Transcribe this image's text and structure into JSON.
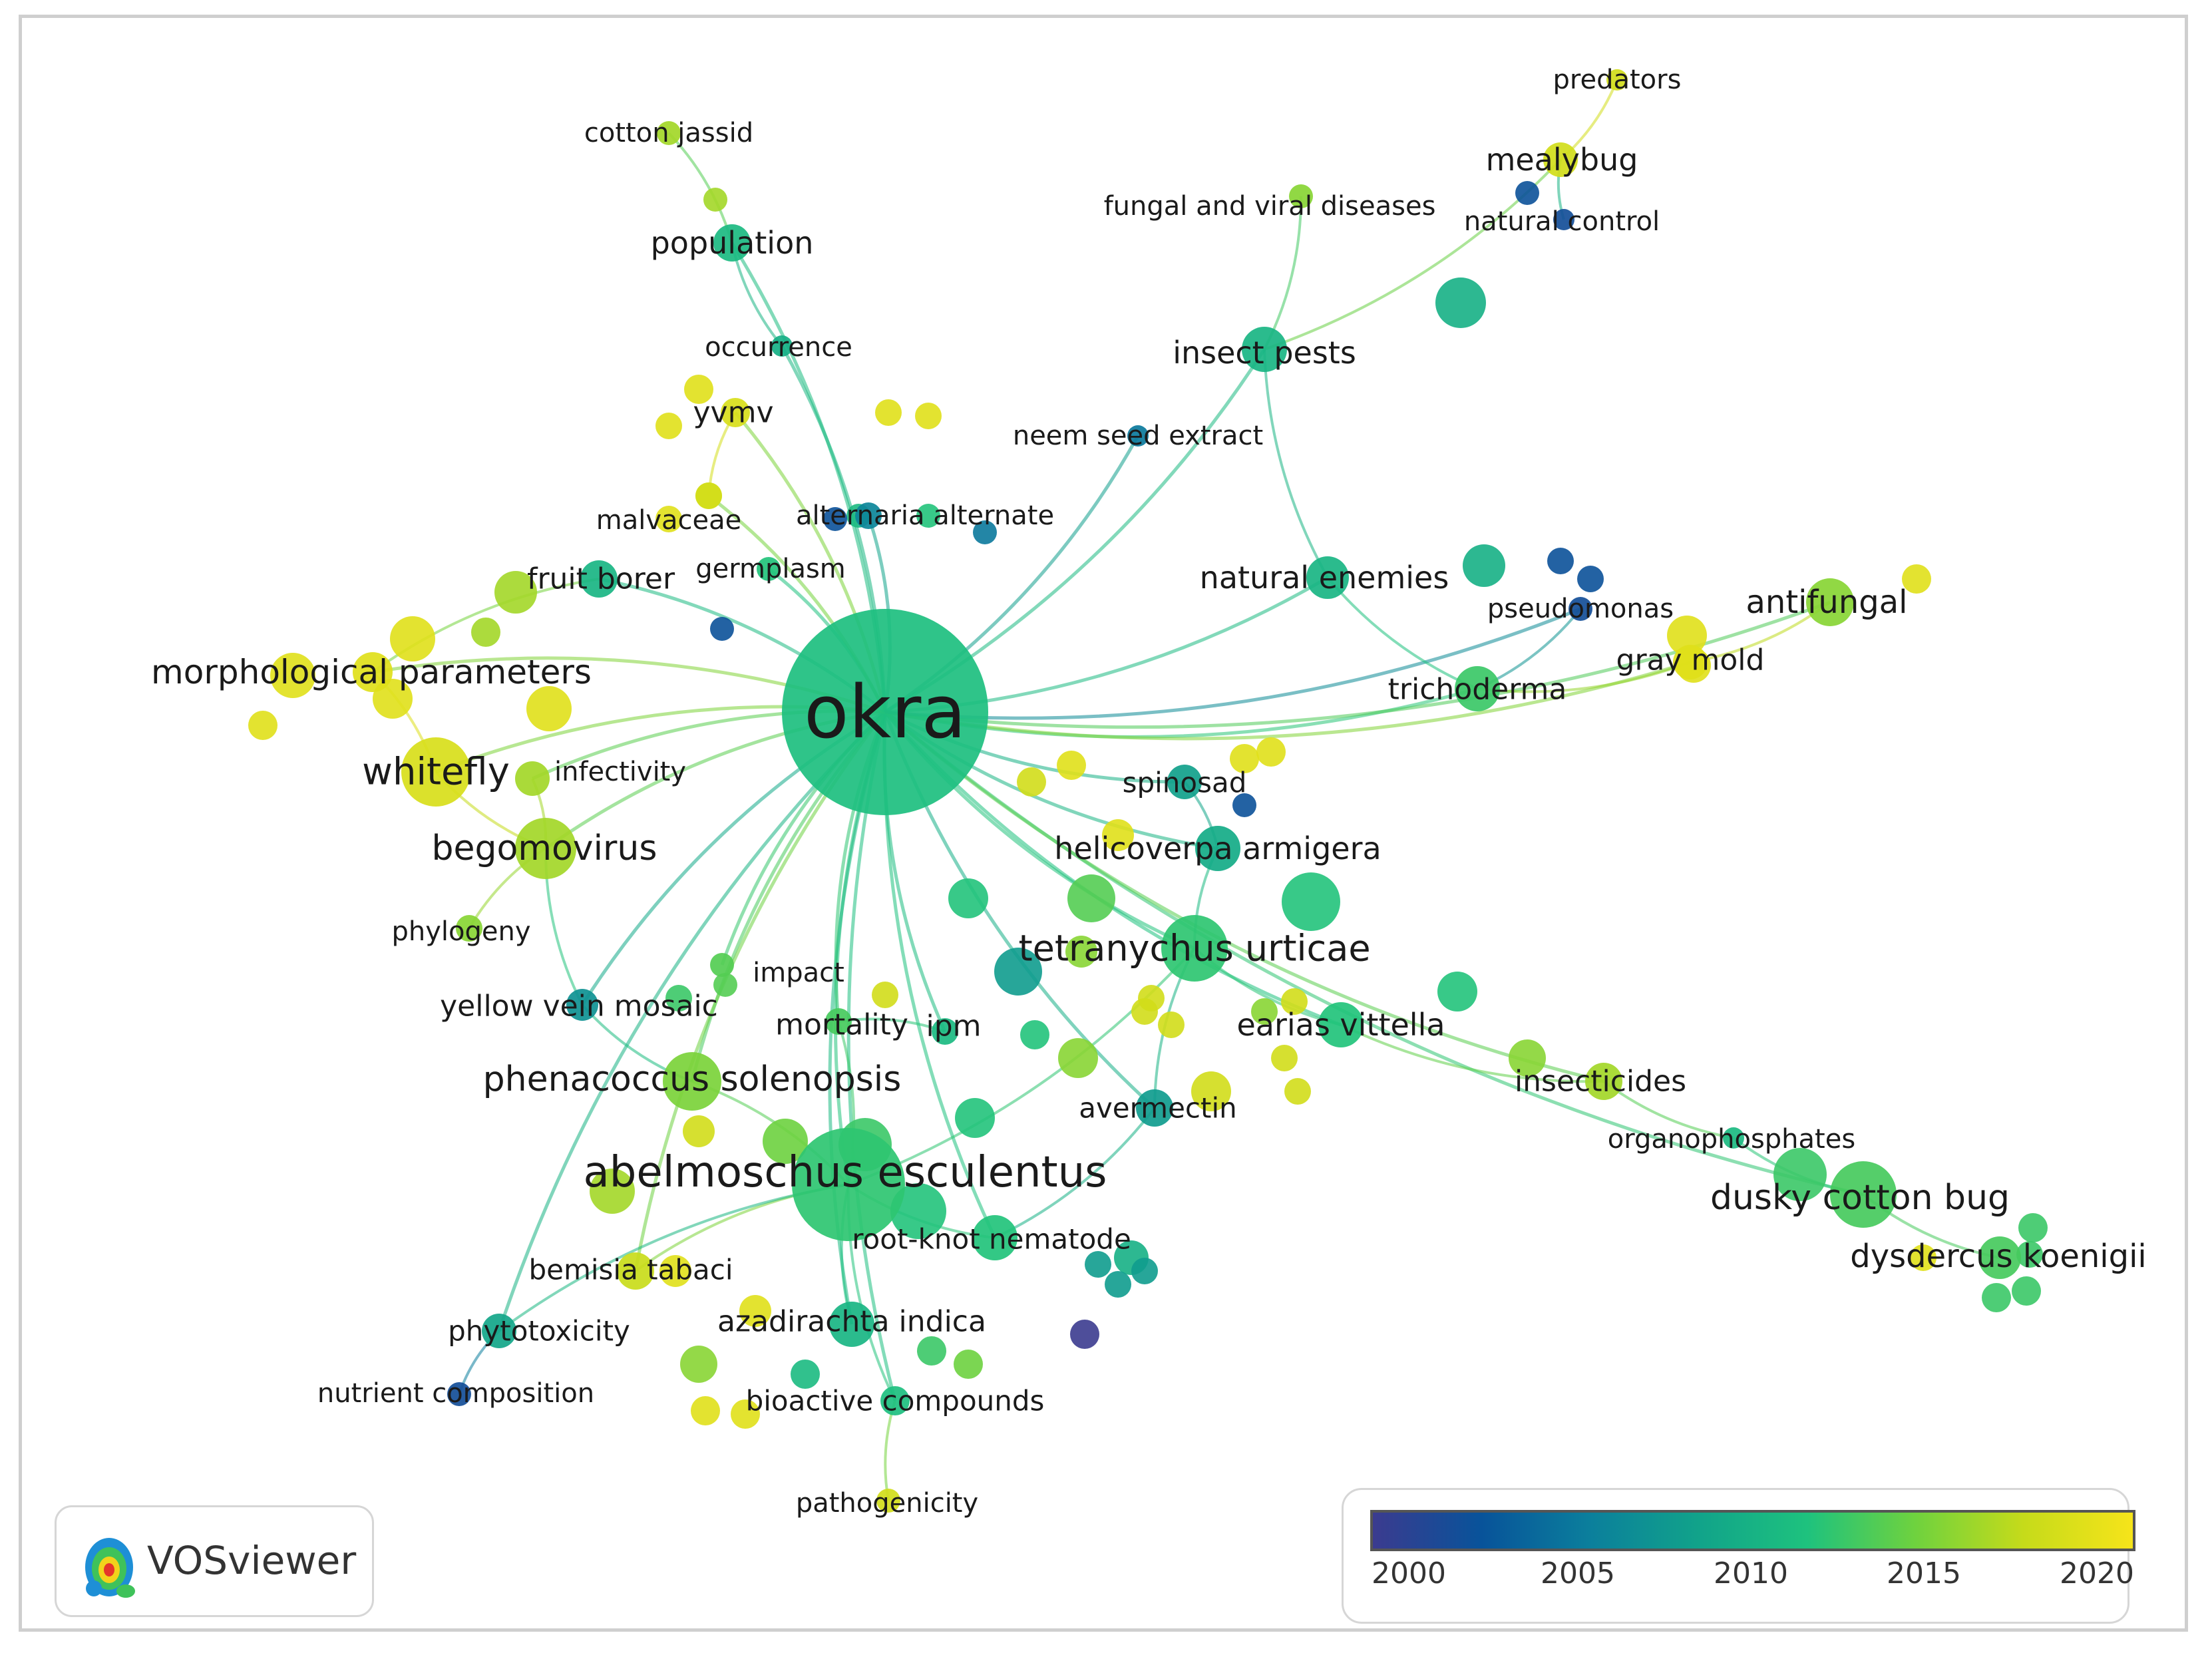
{
  "app": {
    "name": "VOSviewer"
  },
  "colors": {
    "scale": [
      "#3b3b8f",
      "#08539a",
      "#0b7f9c",
      "#11a38a",
      "#1ec27e",
      "#6fd23e",
      "#c6db1a",
      "#f6e41a"
    ]
  },
  "legend": {
    "ticks": [
      "2000",
      "2005",
      "2010",
      "2015",
      "2020"
    ]
  },
  "network": {
    "nodes": [
      {
        "id": "okra",
        "label": "okra",
        "year": 2011.5
      },
      {
        "id": "ae",
        "label": "abelmoschus esculentus",
        "year": 2012.5
      },
      {
        "id": "whitefly",
        "label": "whitefly",
        "year": 2019.5
      },
      {
        "id": "bego",
        "label": "begomovirus",
        "year": 2017
      },
      {
        "id": "tetra",
        "label": "tetranychus urticae",
        "year": 2012.5
      },
      {
        "id": "phen",
        "label": "phenacoccus solenopsis",
        "year": 2015.5
      },
      {
        "id": "dusky",
        "label": "dusky cotton bug",
        "year": 2013.5
      },
      {
        "id": "insectpests",
        "label": "insect pests",
        "year": 2010.5
      },
      {
        "id": "natenemies",
        "label": "natural enemies",
        "year": 2010.5
      },
      {
        "id": "tricho",
        "label": "trichoderma",
        "year": 2013
      },
      {
        "id": "antifungal",
        "label": "antifungal",
        "year": 2016
      },
      {
        "id": "graymold",
        "label": "gray mold",
        "year": 2020
      },
      {
        "id": "helico",
        "label": "helicoverpa armigera",
        "year": 2009.5
      },
      {
        "id": "spinosad",
        "label": "spinosad",
        "year": 2008.5
      },
      {
        "id": "earias",
        "label": "earias vittella",
        "year": 2012
      },
      {
        "id": "avermectin",
        "label": "avermectin",
        "year": 2008
      },
      {
        "id": "rootknot",
        "label": "root-knot nematode",
        "year": 2012
      },
      {
        "id": "aza",
        "label": "azadirachta indica",
        "year": 2010.5
      },
      {
        "id": "bioactive",
        "label": "bioactive compounds",
        "year": 2011.5
      },
      {
        "id": "bemisia",
        "label": "bemisia tabaci",
        "year": 2018.5
      },
      {
        "id": "phyto",
        "label": "phytotoxicity",
        "year": 2009
      },
      {
        "id": "nutrient",
        "label": "nutrient composition",
        "year": 2001.5
      },
      {
        "id": "yvm",
        "label": "yellow vein mosaic",
        "year": 2007
      },
      {
        "id": "mortality",
        "label": "mortality",
        "year": 2013.5
      },
      {
        "id": "ipm",
        "label": "ipm",
        "year": 2011
      },
      {
        "id": "impact",
        "label": "impact",
        "year": 2014
      },
      {
        "id": "phylogeny",
        "label": "phylogeny",
        "year": 2016
      },
      {
        "id": "infectivity",
        "label": "infectivity",
        "year": 2017
      },
      {
        "id": "morph",
        "label": "morphological parameters",
        "year": 2020
      },
      {
        "id": "fruitborer",
        "label": "fruit borer",
        "year": 2010.5
      },
      {
        "id": "germplasm",
        "label": "germplasm",
        "year": 2012
      },
      {
        "id": "malvaceae",
        "label": "malvaceae",
        "year": 2019
      },
      {
        "id": "alternaria",
        "label": "alternaria alternate",
        "year": 2006
      },
      {
        "id": "yvmv",
        "label": "yvmv",
        "year": 2019.5
      },
      {
        "id": "occurrence",
        "label": "occurrence",
        "year": 2010
      },
      {
        "id": "population",
        "label": "population",
        "year": 2011
      },
      {
        "id": "cottonjassid",
        "label": "cotton jassid",
        "year": 2017
      },
      {
        "id": "neem",
        "label": "neem seed extract",
        "year": 2005
      },
      {
        "id": "fungal",
        "label": "fungal and viral diseases",
        "year": 2016
      },
      {
        "id": "mealybug",
        "label": "mealybug",
        "year": 2019
      },
      {
        "id": "natcontrol",
        "label": "natural control",
        "year": 2001.5
      },
      {
        "id": "predators",
        "label": "predators",
        "year": 2019
      },
      {
        "id": "pseudomonas",
        "label": "pseudomonas",
        "year": 2001.5
      },
      {
        "id": "insecticides",
        "label": "insecticides",
        "year": 2017
      },
      {
        "id": "organo",
        "label": "organophosphates",
        "year": 2011
      },
      {
        "id": "dysdercus",
        "label": "dysdercus koenigii",
        "year": 2013.5
      },
      {
        "id": "pathogenicity",
        "label": "pathogenicity",
        "year": 2019
      }
    ],
    "links": [
      [
        "okra",
        "ae"
      ],
      [
        "okra",
        "whitefly"
      ],
      [
        "okra",
        "bego"
      ],
      [
        "okra",
        "tetra"
      ],
      [
        "okra",
        "phen"
      ],
      [
        "okra",
        "insectpests"
      ],
      [
        "okra",
        "natenemies"
      ],
      [
        "okra",
        "tricho"
      ],
      [
        "okra",
        "helico"
      ],
      [
        "okra",
        "spinosad"
      ],
      [
        "okra",
        "earias"
      ],
      [
        "okra",
        "avermectin"
      ],
      [
        "okra",
        "rootknot"
      ],
      [
        "okra",
        "aza"
      ],
      [
        "okra",
        "bioactive"
      ],
      [
        "okra",
        "bemisia"
      ],
      [
        "okra",
        "phyto"
      ],
      [
        "okra",
        "yvm"
      ],
      [
        "okra",
        "mortality"
      ],
      [
        "okra",
        "ipm"
      ],
      [
        "okra",
        "impact"
      ],
      [
        "okra",
        "infectivity"
      ],
      [
        "okra",
        "morph"
      ],
      [
        "okra",
        "fruitborer"
      ],
      [
        "okra",
        "germplasm"
      ],
      [
        "okra",
        "malvaceae"
      ],
      [
        "okra",
        "alternaria"
      ],
      [
        "okra",
        "yvmv"
      ],
      [
        "okra",
        "occurrence"
      ],
      [
        "okra",
        "population"
      ],
      [
        "okra",
        "neem"
      ],
      [
        "okra",
        "dusky"
      ],
      [
        "okra",
        "insecticides"
      ],
      [
        "okra",
        "graymold"
      ],
      [
        "okra",
        "antifungal"
      ],
      [
        "okra",
        "pseudomonas"
      ],
      [
        "population",
        "cottonjassid"
      ],
      [
        "population",
        "occurrence"
      ],
      [
        "insectpests",
        "fungal"
      ],
      [
        "insectpests",
        "natenemies"
      ],
      [
        "insectpests",
        "mealybug"
      ],
      [
        "mealybug",
        "predators"
      ],
      [
        "mealybug",
        "natcontrol"
      ],
      [
        "natenemies",
        "tricho"
      ],
      [
        "tricho",
        "pseudomonas"
      ],
      [
        "tricho",
        "graymold"
      ],
      [
        "graymold",
        "antifungal"
      ],
      [
        "helico",
        "spinosad"
      ],
      [
        "helico",
        "tetra"
      ],
      [
        "tetra",
        "earias"
      ],
      [
        "tetra",
        "avermectin"
      ],
      [
        "earias",
        "insecticides"
      ],
      [
        "insecticides",
        "organo"
      ],
      [
        "organo",
        "dusky"
      ],
      [
        "dusky",
        "dysdercus"
      ],
      [
        "ae",
        "phen"
      ],
      [
        "ae",
        "rootknot"
      ],
      [
        "ae",
        "aza"
      ],
      [
        "ae",
        "bioactive"
      ],
      [
        "ae",
        "bemisia"
      ],
      [
        "ae",
        "phyto"
      ],
      [
        "ae",
        "mortality"
      ],
      [
        "ae",
        "tetra"
      ],
      [
        "phyto",
        "nutrient"
      ],
      [
        "bioactive",
        "pathogenicity"
      ],
      [
        "whitefly",
        "bego"
      ],
      [
        "whitefly",
        "morph"
      ],
      [
        "bego",
        "phylogeny"
      ],
      [
        "bego",
        "yvm"
      ],
      [
        "bego",
        "infectivity"
      ],
      [
        "yvm",
        "phen"
      ],
      [
        "fruitborer",
        "morph"
      ],
      [
        "yvmv",
        "malvaceae"
      ],
      [
        "rootknot",
        "avermectin"
      ],
      [
        "ipm",
        "mortality"
      ]
    ]
  }
}
